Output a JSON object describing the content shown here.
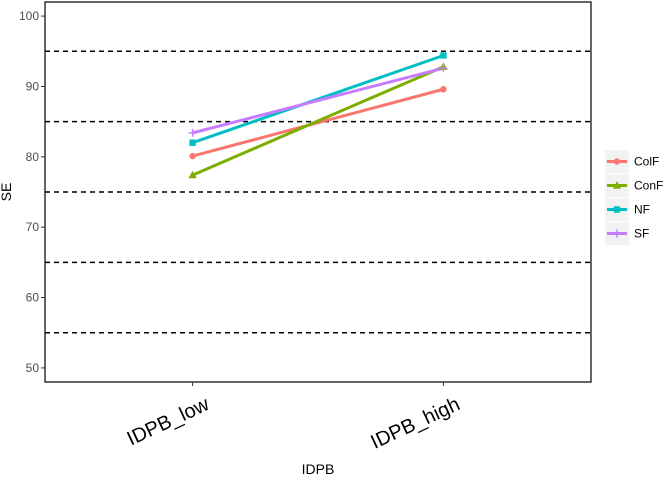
{
  "chart_data": {
    "type": "line",
    "categories": [
      "IDPB_low",
      "IDPB_high"
    ],
    "xlabel": "IDPB",
    "ylabel": "SE",
    "ylim": [
      48,
      102
    ],
    "yticks": [
      50,
      60,
      70,
      80,
      90,
      100
    ],
    "reference_lines": [
      55,
      65,
      75,
      85,
      95
    ],
    "grid": false,
    "legend_position": "right",
    "series": [
      {
        "name": "ColF",
        "values": [
          80.1,
          89.6
        ],
        "color": "#F8766D",
        "marker": "circle"
      },
      {
        "name": "ConF",
        "values": [
          77.4,
          92.8
        ],
        "color": "#7CAE00",
        "marker": "triangle"
      },
      {
        "name": "NF",
        "values": [
          82.0,
          94.4
        ],
        "color": "#00BFC4",
        "marker": "square"
      },
      {
        "name": "SF",
        "values": [
          83.4,
          92.6
        ],
        "color": "#C77CFF",
        "marker": "plus"
      }
    ]
  }
}
